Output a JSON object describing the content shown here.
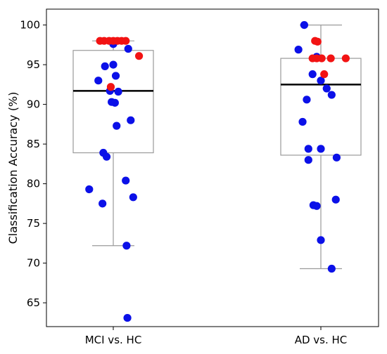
{
  "chart_data": {
    "type": "boxplot",
    "title": "",
    "xlabel": "",
    "ylabel": "Classification Accuracy (%)",
    "ylim": [
      62,
      102
    ],
    "yticks": [
      65,
      70,
      75,
      80,
      85,
      90,
      95,
      100
    ],
    "categories": [
      "MCI vs. HC",
      "AD vs. HC"
    ],
    "colors": {
      "blue": "#0b10e8",
      "red": "#f21313",
      "box": "#9a9a9a",
      "median": "#000000"
    },
    "boxes": [
      {
        "category": "MCI vs. HC",
        "whisker_low": 72.2,
        "q1": 83.9,
        "median": 91.7,
        "q3": 96.8,
        "whisker_high": 98.0
      },
      {
        "category": "AD vs. HC",
        "whisker_low": 69.3,
        "q1": 83.6,
        "median": 92.5,
        "q3": 95.8,
        "whisker_high": 100.0
      }
    ],
    "points": [
      {
        "category": "MCI vs. HC",
        "color": "blue",
        "values": [
          97.6,
          97.0,
          95.0,
          94.8,
          93.6,
          93.0,
          91.7,
          91.6,
          90.3,
          90.2,
          88.0,
          87.3,
          83.9,
          83.4,
          80.4,
          79.3,
          78.3,
          77.5,
          72.2,
          63.1
        ],
        "jitter": [
          0.0,
          0.18,
          0.0,
          -0.1,
          0.03,
          -0.18,
          -0.04,
          0.06,
          -0.02,
          0.02,
          0.21,
          0.04,
          -0.12,
          -0.08,
          0.15,
          -0.29,
          0.24,
          -0.13,
          0.16,
          0.17
        ]
      },
      {
        "category": "MCI vs. HC",
        "color": "red",
        "values": [
          98.0,
          98.0,
          98.0,
          98.0,
          98.0,
          98.0,
          98.0,
          96.1,
          92.2
        ],
        "jitter": [
          -0.16,
          -0.11,
          -0.05,
          0.0,
          0.05,
          0.1,
          0.15,
          0.31,
          -0.03
        ]
      },
      {
        "category": "AD vs. HC",
        "color": "blue",
        "values": [
          100.0,
          96.9,
          96.0,
          93.8,
          93.0,
          92.0,
          91.2,
          90.6,
          87.8,
          84.4,
          84.4,
          83.3,
          83.0,
          78.0,
          77.3,
          77.2,
          72.9,
          69.3
        ],
        "jitter": [
          -0.2,
          -0.27,
          -0.05,
          -0.1,
          0.0,
          0.07,
          0.13,
          -0.17,
          -0.22,
          -0.15,
          0.0,
          0.19,
          -0.15,
          0.18,
          -0.09,
          -0.05,
          0.0,
          0.13
        ]
      },
      {
        "category": "AD vs. HC",
        "color": "red",
        "values": [
          98.0,
          97.9,
          95.8,
          95.8,
          95.8,
          95.8,
          95.8,
          93.8
        ],
        "jitter": [
          -0.07,
          -0.04,
          -0.1,
          -0.05,
          0.01,
          0.12,
          0.3,
          0.04
        ]
      }
    ]
  }
}
